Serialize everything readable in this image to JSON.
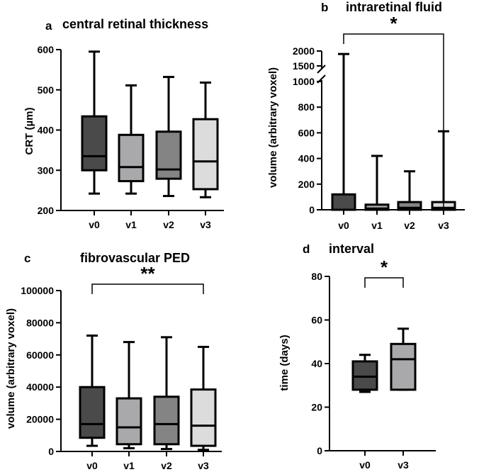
{
  "chart_data": [
    {
      "panel": "a",
      "type": "boxplot",
      "title": "central retinal thickness",
      "xlabel": "",
      "ylabel": "CRT (µm)",
      "ylim": [
        200,
        600
      ],
      "yticks": [
        "200",
        "300",
        "400",
        "500",
        "600"
      ],
      "categories": [
        "v0",
        "v1",
        "v2",
        "v3"
      ],
      "boxes": [
        {
          "name": "v0",
          "min": 242,
          "q1": 300,
          "median": 335,
          "q3": 434,
          "max": 595,
          "color": "#4a4a4a"
        },
        {
          "name": "v1",
          "min": 242,
          "q1": 273,
          "median": 308,
          "q3": 388,
          "max": 511,
          "color": "#a9a9ab"
        },
        {
          "name": "v2",
          "min": 236,
          "q1": 279,
          "median": 302,
          "q3": 396,
          "max": 532,
          "color": "#848484"
        },
        {
          "name": "v3",
          "min": 233,
          "q1": 253,
          "median": 322,
          "q3": 427,
          "max": 518,
          "color": "#dcdcdc"
        }
      ]
    },
    {
      "panel": "b",
      "type": "boxplot",
      "title": "intraretinal fluid",
      "xlabel": "",
      "ylabel": "volume (arbitrary voxel)",
      "ylim": [
        0,
        2000
      ],
      "axis_break": [
        1000,
        1500
      ],
      "yticks_lower": [
        "0",
        "200",
        "400",
        "600",
        "800",
        "1000"
      ],
      "yticks_upper": [
        "1500",
        "2000"
      ],
      "categories": [
        "v0",
        "v1",
        "v2",
        "v3"
      ],
      "boxes": [
        {
          "name": "v0",
          "min": 0,
          "q1": 0,
          "median": 0,
          "q3": 120,
          "max": 1900,
          "color": "#4a4a4a"
        },
        {
          "name": "v1",
          "min": 0,
          "q1": 0,
          "median": 10,
          "q3": 40,
          "max": 420,
          "color": "#a9a9ab"
        },
        {
          "name": "v2",
          "min": 0,
          "q1": 0,
          "median": 15,
          "q3": 60,
          "max": 300,
          "color": "#848484"
        },
        {
          "name": "v3",
          "min": 0,
          "q1": 0,
          "median": 15,
          "q3": 60,
          "max": 612,
          "color": "#dcdcdc"
        }
      ],
      "significance": [
        {
          "from": "v0",
          "to": "v3",
          "label": "*"
        }
      ]
    },
    {
      "panel": "c",
      "type": "boxplot",
      "title": "fibrovascular PED",
      "xlabel": "",
      "ylabel": "volume (arbitrary voxel)",
      "ylim": [
        0,
        100000
      ],
      "yticks": [
        "0",
        "20000",
        "40000",
        "60000",
        "80000",
        "100000"
      ],
      "categories": [
        "v0",
        "v1",
        "v2",
        "v3"
      ],
      "boxes": [
        {
          "name": "v0",
          "min": 3500,
          "q1": 8500,
          "median": 17000,
          "q3": 40000,
          "max": 72000,
          "color": "#4a4a4a"
        },
        {
          "name": "v1",
          "min": 2000,
          "q1": 4500,
          "median": 15000,
          "q3": 33000,
          "max": 68000,
          "color": "#a9a9ab"
        },
        {
          "name": "v2",
          "min": 1500,
          "q1": 4500,
          "median": 17000,
          "q3": 34000,
          "max": 71000,
          "color": "#848484"
        },
        {
          "name": "v3",
          "min": 1000,
          "q1": 3500,
          "median": 16000,
          "q3": 38500,
          "max": 65000,
          "color": "#dcdcdc"
        }
      ],
      "significance": [
        {
          "from": "v0",
          "to": "v3",
          "label": "**"
        }
      ]
    },
    {
      "panel": "d",
      "type": "boxplot",
      "title": "interval",
      "xlabel": "",
      "ylabel": "time (days)",
      "ylim": [
        0,
        80
      ],
      "yticks": [
        "0",
        "20",
        "40",
        "60",
        "80"
      ],
      "categories": [
        "v0",
        "v3"
      ],
      "boxes": [
        {
          "name": "v0",
          "min": 27,
          "q1": 28,
          "median": 34,
          "q3": 41,
          "max": 44,
          "color": "#4a4a4a"
        },
        {
          "name": "v3",
          "min": 28,
          "q1": 28,
          "median": 42,
          "q3": 49,
          "max": 56,
          "color": "#a9a9ab"
        }
      ],
      "significance": [
        {
          "from": "v0",
          "to": "v3",
          "label": "*"
        }
      ]
    }
  ]
}
